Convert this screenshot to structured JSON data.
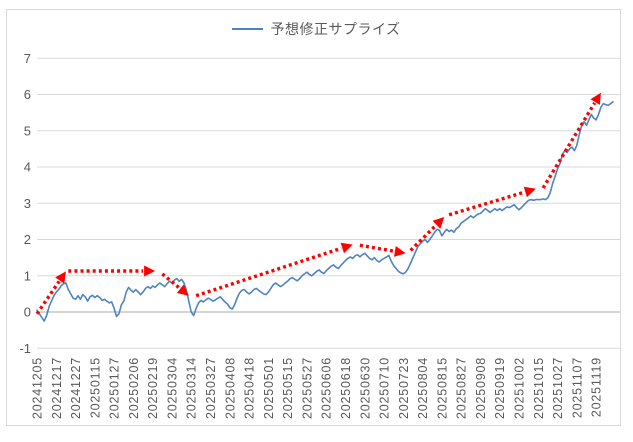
{
  "legend": {
    "label": "予想修正サプライズ"
  },
  "colors": {
    "series": "#4f84c2",
    "arrow": "#fe0000",
    "grid": "#d9d9d9",
    "axis": "#ababab",
    "text": "#595959",
    "border": "#d9d9d9"
  },
  "chart_data": {
    "type": "line",
    "title": "",
    "xlabel": "",
    "ylabel": "",
    "legend_position": "top",
    "grid": true,
    "ylim": [
      -1,
      7
    ],
    "yticks": [
      -1,
      0,
      1,
      2,
      3,
      4,
      5,
      6,
      7
    ],
    "label_interval": 8,
    "x_labels": [
      "20241205",
      "20241217",
      "20241227",
      "20250115",
      "20250127",
      "20250206",
      "20250219",
      "20250304",
      "20250314",
      "20250327",
      "20250408",
      "20250418",
      "20250501",
      "20250515",
      "20250527",
      "20250606",
      "20250618",
      "20250630",
      "20250710",
      "20250723",
      "20250804",
      "20250815",
      "20250827",
      "20250908",
      "20250919",
      "20251002",
      "20251015",
      "20251027",
      "20251107",
      "20251119"
    ],
    "series": [
      {
        "name": "予想修正サプライズ",
        "values": [
          0.05,
          -0.05,
          -0.15,
          -0.25,
          -0.1,
          0.15,
          0.3,
          0.45,
          0.55,
          0.62,
          0.72,
          0.78,
          0.8,
          0.62,
          0.5,
          0.38,
          0.35,
          0.45,
          0.35,
          0.48,
          0.42,
          0.3,
          0.42,
          0.46,
          0.4,
          0.45,
          0.4,
          0.32,
          0.35,
          0.3,
          0.25,
          0.28,
          0.1,
          -0.12,
          -0.05,
          0.2,
          0.3,
          0.55,
          0.68,
          0.6,
          0.55,
          0.62,
          0.55,
          0.48,
          0.55,
          0.65,
          0.7,
          0.65,
          0.72,
          0.68,
          0.75,
          0.8,
          0.75,
          0.7,
          0.78,
          0.85,
          0.8,
          0.88,
          0.92,
          0.85,
          0.9,
          0.8,
          0.6,
          0.3,
          0.0,
          -0.1,
          0.1,
          0.25,
          0.32,
          0.28,
          0.33,
          0.38,
          0.35,
          0.3,
          0.33,
          0.38,
          0.42,
          0.35,
          0.28,
          0.22,
          0.12,
          0.08,
          0.2,
          0.38,
          0.52,
          0.6,
          0.62,
          0.55,
          0.5,
          0.55,
          0.62,
          0.65,
          0.6,
          0.55,
          0.5,
          0.48,
          0.55,
          0.65,
          0.75,
          0.8,
          0.75,
          0.7,
          0.74,
          0.8,
          0.85,
          0.92,
          0.95,
          0.9,
          0.86,
          0.92,
          1.0,
          1.05,
          1.1,
          1.04,
          1.0,
          1.06,
          1.12,
          1.16,
          1.1,
          1.06,
          1.14,
          1.2,
          1.26,
          1.3,
          1.24,
          1.2,
          1.28,
          1.35,
          1.42,
          1.48,
          1.52,
          1.48,
          1.55,
          1.58,
          1.52,
          1.58,
          1.62,
          1.55,
          1.48,
          1.44,
          1.5,
          1.42,
          1.38,
          1.44,
          1.48,
          1.52,
          1.56,
          1.4,
          1.28,
          1.2,
          1.12,
          1.08,
          1.05,
          1.1,
          1.2,
          1.35,
          1.5,
          1.65,
          1.8,
          1.88,
          1.95,
          2.0,
          1.92,
          2.0,
          2.1,
          2.2,
          2.28,
          2.25,
          2.1,
          2.2,
          2.28,
          2.22,
          2.26,
          2.2,
          2.3,
          2.35,
          2.45,
          2.5,
          2.55,
          2.6,
          2.65,
          2.6,
          2.65,
          2.7,
          2.72,
          2.78,
          2.85,
          2.8,
          2.75,
          2.8,
          2.85,
          2.8,
          2.85,
          2.8,
          2.85,
          2.9,
          2.88,
          2.92,
          2.96,
          2.88,
          2.82,
          2.88,
          2.95,
          3.02,
          3.08,
          3.1,
          3.08,
          3.1,
          3.1,
          3.1,
          3.12,
          3.1,
          3.15,
          3.3,
          3.55,
          3.75,
          3.95,
          4.1,
          4.35,
          4.45,
          4.4,
          4.5,
          4.55,
          4.45,
          4.6,
          4.9,
          5.15,
          5.25,
          5.15,
          5.3,
          5.45,
          5.35,
          5.3,
          5.45,
          5.65,
          5.75,
          5.72,
          5.7,
          5.75,
          5.8
        ]
      }
    ],
    "annotations": {
      "type": "dotted-trend-arrows",
      "color": "#fe0000",
      "segments": [
        {
          "from": [
            0,
            -0.05
          ],
          "to": [
            12,
            1.12
          ]
        },
        {
          "from": [
            13,
            1.13
          ],
          "to": [
            49,
            1.13
          ]
        },
        {
          "from": [
            52,
            1.05
          ],
          "to": [
            63,
            0.45
          ]
        },
        {
          "from": [
            66,
            0.45
          ],
          "to": [
            131,
            1.86
          ]
        },
        {
          "from": [
            134,
            1.84
          ],
          "to": [
            153,
            1.62
          ]
        },
        {
          "from": [
            155,
            1.7
          ],
          "to": [
            169,
            2.62
          ]
        },
        {
          "from": [
            171,
            2.68
          ],
          "to": [
            207,
            3.4
          ]
        },
        {
          "from": [
            210,
            3.42
          ],
          "to": [
            234,
            6.05
          ]
        }
      ]
    }
  }
}
